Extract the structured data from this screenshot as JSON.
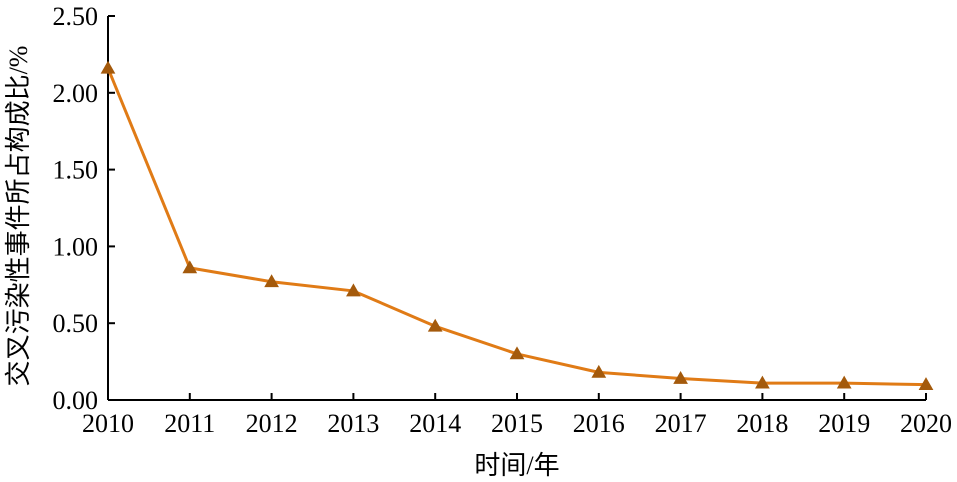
{
  "chart_data": {
    "type": "line",
    "title": "",
    "xlabel": "时间/年",
    "ylabel": "交叉污染性事件所占构成比/%",
    "categories": [
      "2010",
      "2011",
      "2012",
      "2013",
      "2014",
      "2015",
      "2016",
      "2017",
      "2018",
      "2019",
      "2020"
    ],
    "yticks": [
      "0.00",
      "0.50",
      "1.00",
      "1.50",
      "2.00",
      "2.50"
    ],
    "ylim": [
      0,
      2.5
    ],
    "grid": false,
    "series": [
      {
        "values": [
          2.16,
          0.86,
          0.77,
          0.71,
          0.48,
          0.3,
          0.18,
          0.14,
          0.11,
          0.11,
          0.1
        ]
      }
    ],
    "colors": {
      "line": "#E07B16",
      "marker": "#A45A0C"
    }
  }
}
